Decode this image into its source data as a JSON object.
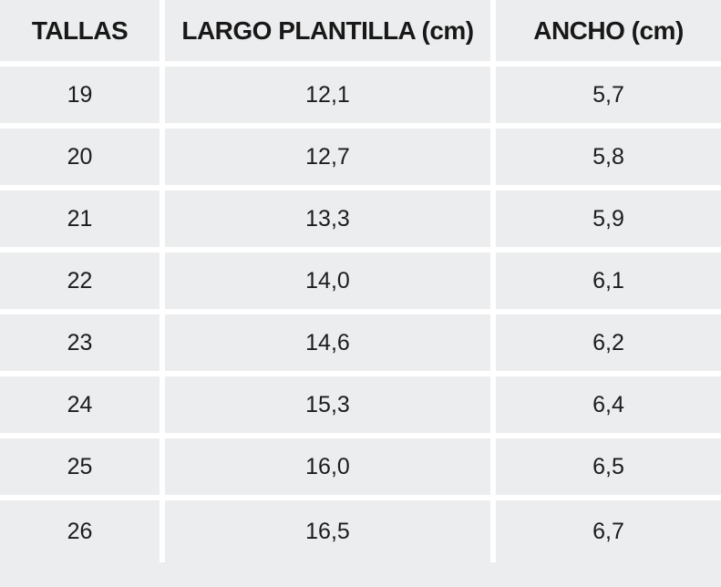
{
  "table": {
    "columns": [
      {
        "id": "tallas",
        "label": "TALLAS"
      },
      {
        "id": "largo-plantilla",
        "label": "LARGO PLANTILLA (cm)"
      },
      {
        "id": "ancho",
        "label": "ANCHO (cm)"
      }
    ],
    "rows": [
      [
        "19",
        "12,1",
        "5,7"
      ],
      [
        "20",
        "12,7",
        "5,8"
      ],
      [
        "21",
        "13,3",
        "5,9"
      ],
      [
        "22",
        "14,0",
        "6,1"
      ],
      [
        "23",
        "14,6",
        "6,2"
      ],
      [
        "24",
        "15,3",
        "6,4"
      ],
      [
        "25",
        "16,0",
        "6,5"
      ],
      [
        "26",
        "16,5",
        "6,7"
      ]
    ],
    "colors": {
      "cell_background": "#ECEDEE",
      "divider": "#FFFFFF",
      "text": "#1C1C1C"
    }
  },
  "chart_data": {
    "type": "table",
    "title": "",
    "columns": [
      "TALLAS",
      "LARGO PLANTILLA (cm)",
      "ANCHO (cm)"
    ],
    "rows": [
      [
        19,
        12.1,
        5.7
      ],
      [
        20,
        12.7,
        5.8
      ],
      [
        21,
        13.3,
        5.9
      ],
      [
        22,
        14.0,
        6.1
      ],
      [
        23,
        14.6,
        6.2
      ],
      [
        24,
        15.3,
        6.4
      ],
      [
        25,
        16.0,
        6.5
      ],
      [
        26,
        16.5,
        6.7
      ]
    ],
    "notes": "Shoe size chart: size vs insole length (cm) and width (cm); decimal comma formatting as displayed"
  }
}
